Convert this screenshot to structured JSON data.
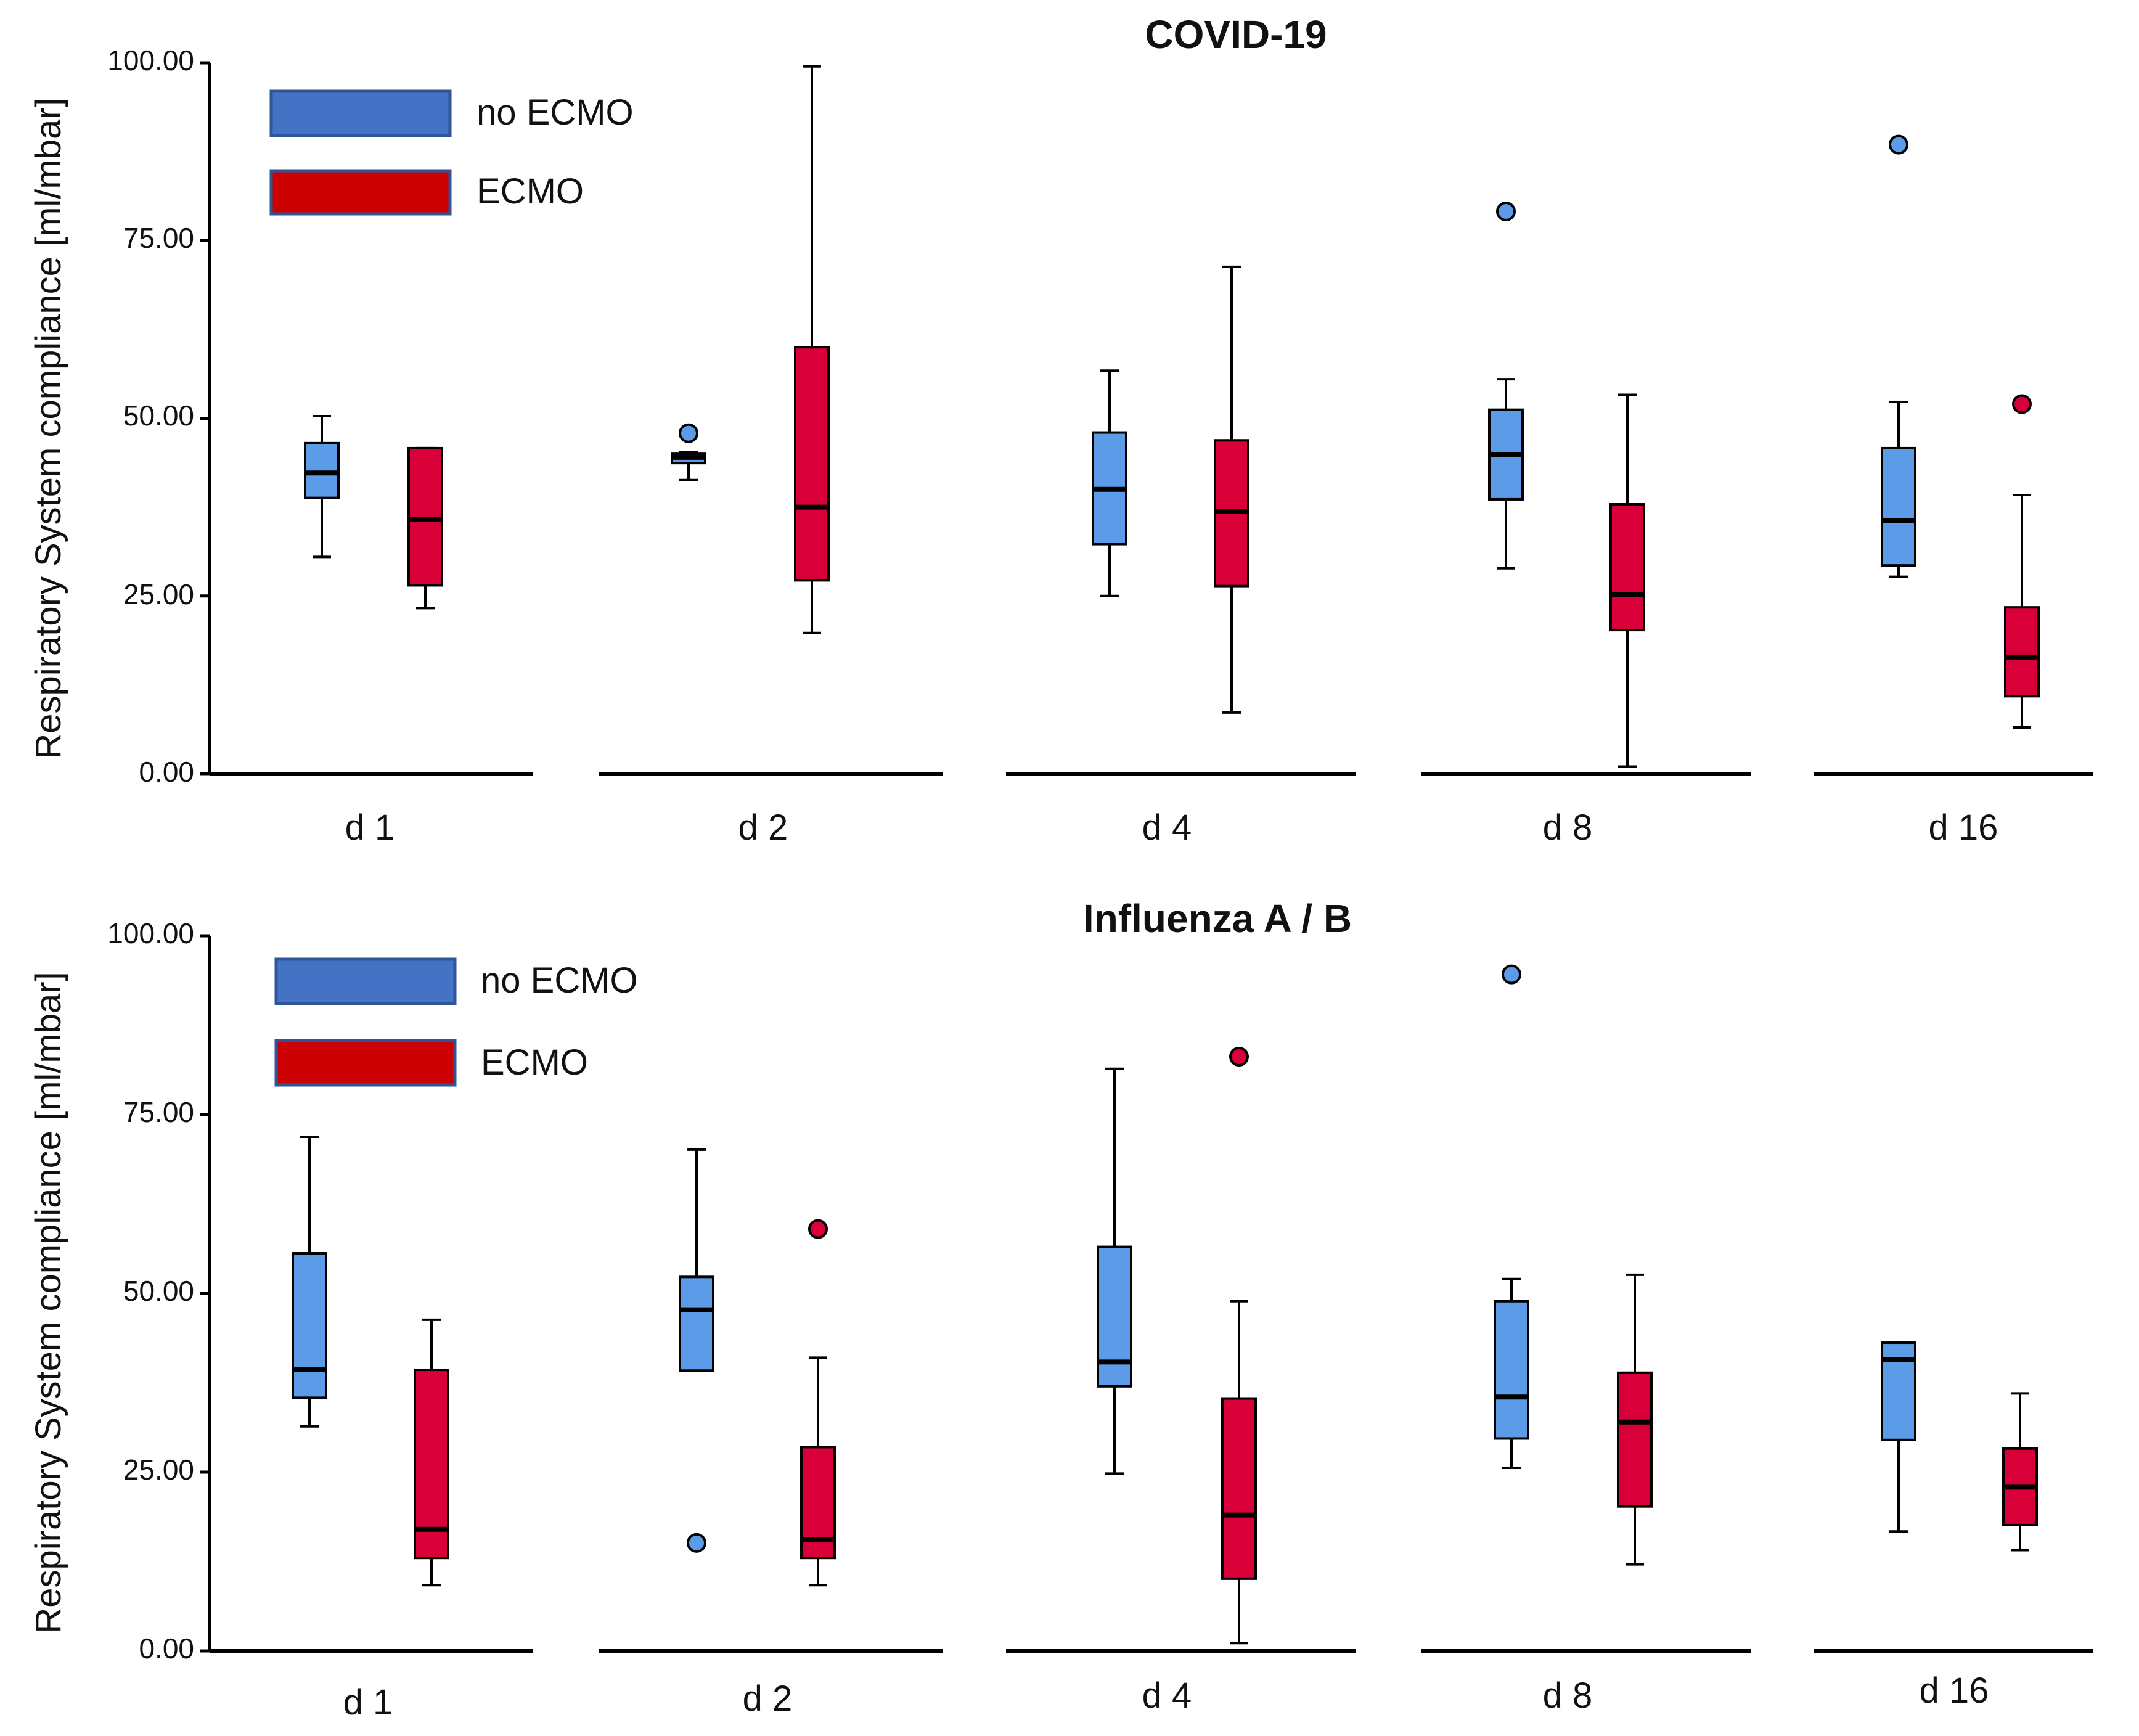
{
  "colors": {
    "no_ecmo": "#5b9be8",
    "ecmo": "#d9003a",
    "legend_no_ecmo": "#4472c4",
    "legend_ecmo": "#cc0000",
    "legend_border": "#2f5597",
    "axis": "#000000"
  },
  "chart_data": [
    {
      "type": "boxplot",
      "title": "COVID-19",
      "ylabel": "Respiratory System compliance [ml/mbar]",
      "xlabel": "",
      "ylim": [
        0,
        100
      ],
      "yticks": [
        "0.00",
        "25.00",
        "50.00",
        "75.00",
        "100.00"
      ],
      "legend": [
        "no ECMO",
        "ECMO"
      ],
      "legend_position": "top-left",
      "groups": [
        {
          "label": "d 1",
          "no_ecmo": {
            "whisker_low": 30.5,
            "q1": 38.8,
            "median": 42.3,
            "q3": 46.5,
            "whisker_high": 50.3,
            "outliers": []
          },
          "ecmo": {
            "whisker_low": 23.3,
            "q1": 26.5,
            "median": 35.8,
            "q3": 45.8,
            "whisker_high": 45.8,
            "outliers": []
          }
        },
        {
          "label": "d 2",
          "no_ecmo": {
            "whisker_low": 41.3,
            "q1": 43.7,
            "median": 44.5,
            "q3": 45.0,
            "whisker_high": 45.2,
            "outliers": [
              47.9
            ]
          },
          "ecmo": {
            "whisker_low": 19.8,
            "q1": 27.2,
            "median": 37.5,
            "q3": 60.0,
            "whisker_high": 99.5,
            "outliers": []
          }
        },
        {
          "label": "d 4",
          "no_ecmo": {
            "whisker_low": 25.0,
            "q1": 32.3,
            "median": 40.0,
            "q3": 48.0,
            "whisker_high": 56.7,
            "outliers": []
          },
          "ecmo": {
            "whisker_low": 8.6,
            "q1": 26.4,
            "median": 36.9,
            "q3": 46.9,
            "whisker_high": 71.3,
            "outliers": []
          }
        },
        {
          "label": "d 8",
          "no_ecmo": {
            "whisker_low": 28.9,
            "q1": 38.6,
            "median": 44.9,
            "q3": 51.2,
            "whisker_high": 55.5,
            "outliers": [
              79.1
            ]
          },
          "ecmo": {
            "whisker_low": 1.0,
            "q1": 20.2,
            "median": 25.2,
            "q3": 37.9,
            "whisker_high": 53.3,
            "outliers": []
          }
        },
        {
          "label": "d 16",
          "no_ecmo": {
            "whisker_low": 27.7,
            "q1": 29.3,
            "median": 35.6,
            "q3": 45.8,
            "whisker_high": 52.3,
            "outliers": [
              88.5
            ]
          },
          "ecmo": {
            "whisker_low": 6.5,
            "q1": 10.9,
            "median": 16.4,
            "q3": 23.4,
            "whisker_high": 39.2,
            "outliers": [
              52.0
            ]
          }
        }
      ]
    },
    {
      "type": "boxplot",
      "title": "Influenza A / B",
      "ylabel": "Respiratory System compliance [ml/mbar]",
      "xlabel": "",
      "ylim": [
        0,
        100
      ],
      "yticks": [
        "0.00",
        "25.00",
        "50.00",
        "75.00",
        "100.00"
      ],
      "legend": [
        "no ECMO",
        "ECMO"
      ],
      "legend_position": "top-left",
      "groups": [
        {
          "label": "d 1",
          "no_ecmo": {
            "whisker_low": 31.4,
            "q1": 35.4,
            "median": 39.4,
            "q3": 55.6,
            "whisker_high": 71.9,
            "outliers": []
          },
          "ecmo": {
            "whisker_low": 9.2,
            "q1": 13.0,
            "median": 17.0,
            "q3": 39.3,
            "whisker_high": 46.3,
            "outliers": []
          }
        },
        {
          "label": "d 2",
          "no_ecmo": {
            "whisker_low": 39.2,
            "q1": 39.2,
            "median": 47.7,
            "q3": 52.3,
            "whisker_high": 70.1,
            "outliers": [
              15.1
            ]
          },
          "ecmo": {
            "whisker_low": 9.2,
            "q1": 13.0,
            "median": 15.6,
            "q3": 28.5,
            "whisker_high": 41.0,
            "outliers": [
              59.0
            ]
          }
        },
        {
          "label": "d 4",
          "no_ecmo": {
            "whisker_low": 24.8,
            "q1": 37.0,
            "median": 40.4,
            "q3": 56.5,
            "whisker_high": 81.4,
            "outliers": []
          },
          "ecmo": {
            "whisker_low": 1.1,
            "q1": 10.1,
            "median": 19.0,
            "q3": 35.3,
            "whisker_high": 48.9,
            "outliers": [
              83.1
            ]
          }
        },
        {
          "label": "d 8",
          "no_ecmo": {
            "whisker_low": 25.6,
            "q1": 29.7,
            "median": 35.5,
            "q3": 48.9,
            "whisker_high": 52.0,
            "outliers": [
              94.6
            ]
          },
          "ecmo": {
            "whisker_low": 12.1,
            "q1": 20.2,
            "median": 32.0,
            "q3": 38.9,
            "whisker_high": 52.6,
            "outliers": []
          }
        },
        {
          "label": "d 16",
          "no_ecmo": {
            "whisker_low": 16.7,
            "q1": 29.5,
            "median": 40.7,
            "q3": 43.1,
            "whisker_high": 43.1,
            "outliers": []
          },
          "ecmo": {
            "whisker_low": 14.1,
            "q1": 17.6,
            "median": 22.9,
            "q3": 28.3,
            "whisker_high": 36.0,
            "outliers": []
          }
        }
      ]
    }
  ]
}
